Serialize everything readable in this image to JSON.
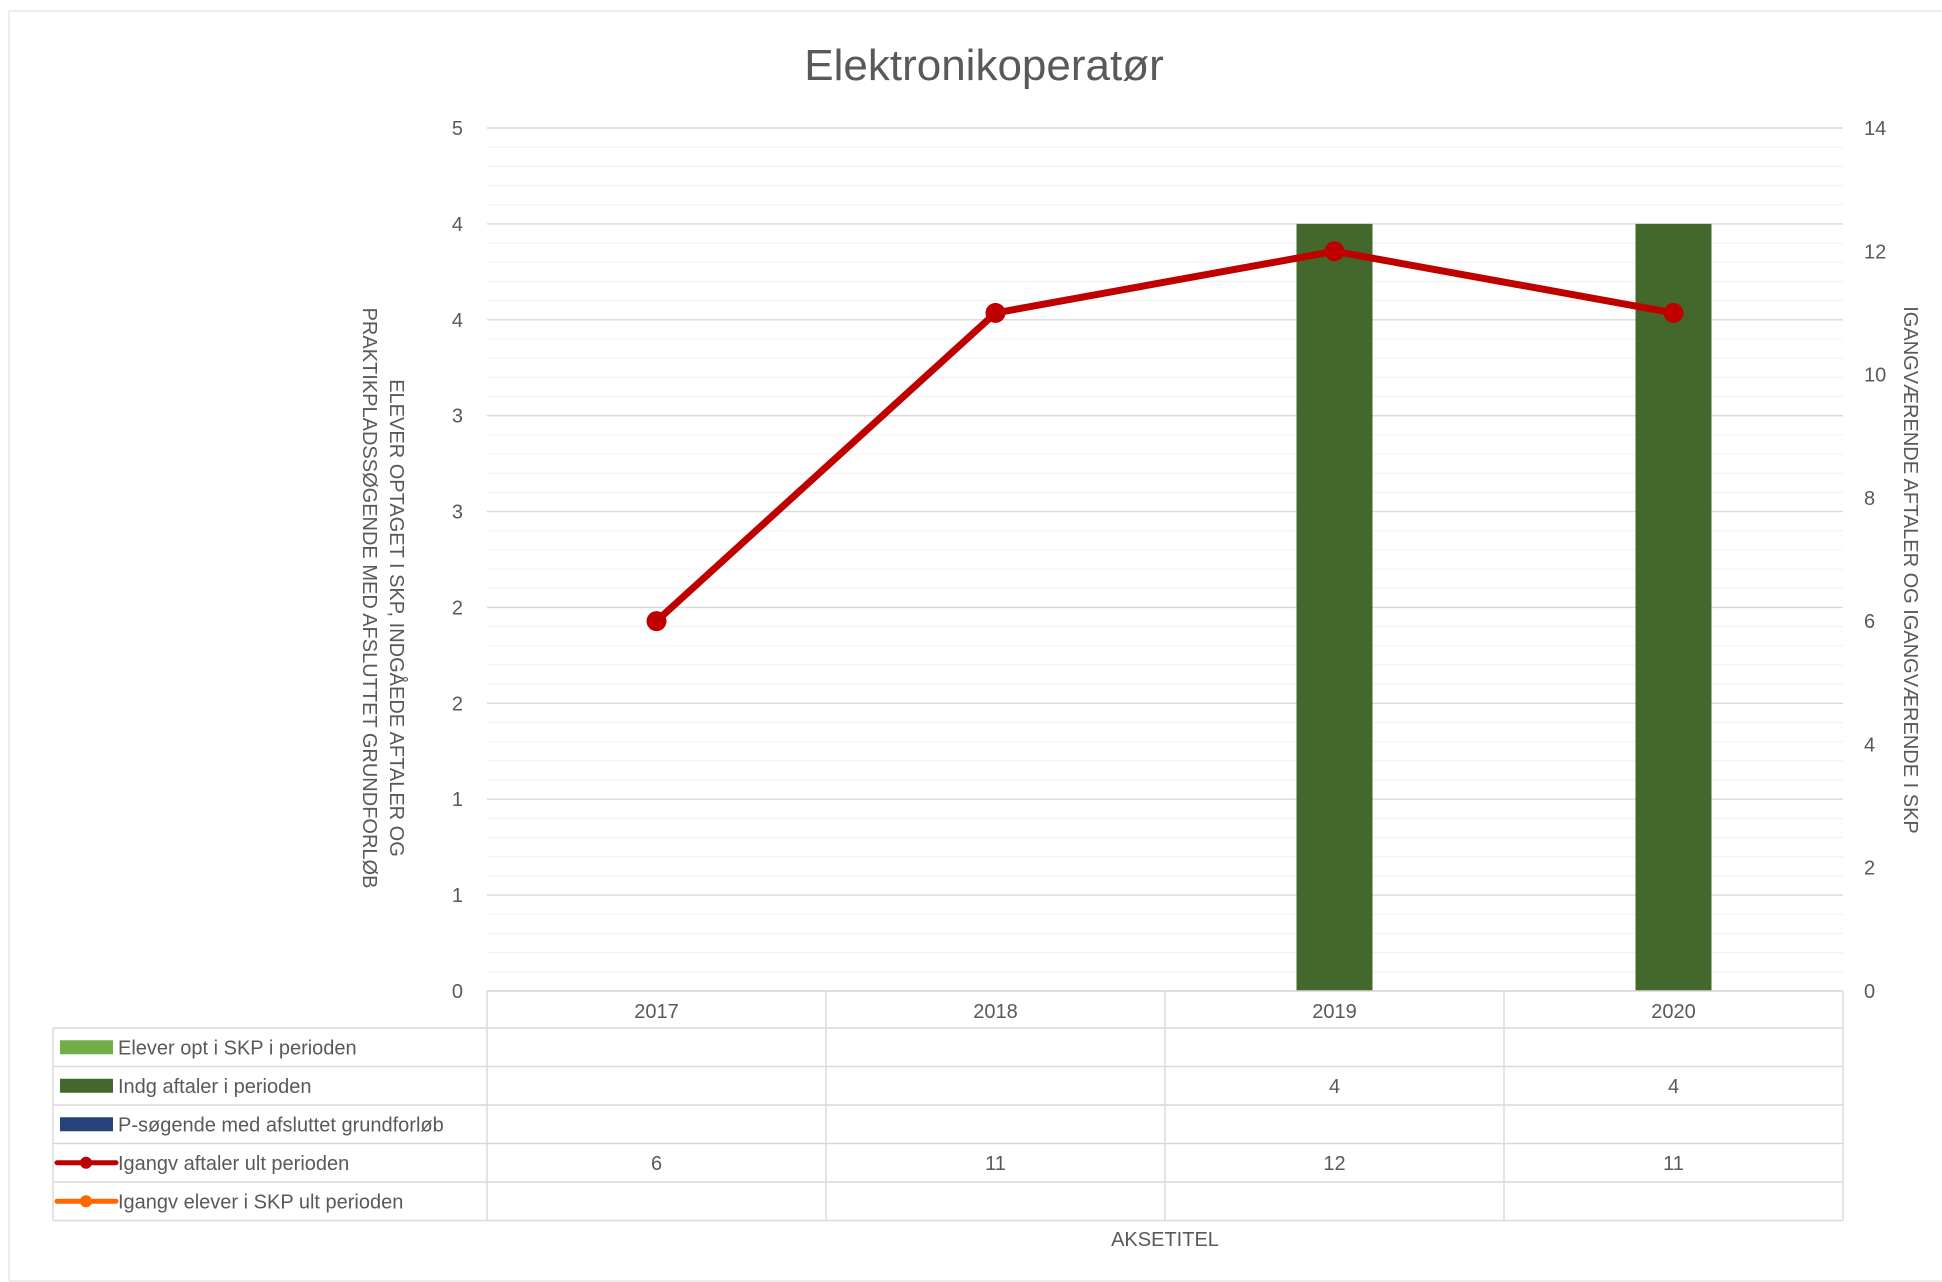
{
  "chart_data": {
    "type": "bar",
    "title": "Elektronikoperatør",
    "categories": [
      "2017",
      "2018",
      "2019",
      "2020"
    ],
    "y_left_label": "ELEVER OPTAGET I SKP, INDGÅEDE AFTALER OG PRAKTIKPLADSSØGENDE MED AFSLUTTET GRUNDFORLØB",
    "y_left_ticks": [
      "0",
      "1",
      "1",
      "2",
      "2",
      "3",
      "3",
      "4",
      "4",
      "5"
    ],
    "y_left_range": [
      0,
      4.5
    ],
    "y_right_label": "IGANGVÆRENDE AFTALER OG IGANGVÆRENDE I SKP",
    "y_right_ticks": [
      "0",
      "2",
      "4",
      "6",
      "8",
      "10",
      "12",
      "14"
    ],
    "y_right_range": [
      0,
      14
    ],
    "x_label": "AKSETITEL",
    "grid": true,
    "legend_position": "data-table",
    "series": [
      {
        "name": "Elever opt i SKP i perioden",
        "kind": "bar",
        "axis": "left",
        "color": "#70ad47",
        "values": [
          null,
          null,
          null,
          null
        ]
      },
      {
        "name": "Indg aftaler i perioden",
        "kind": "bar",
        "axis": "left",
        "color": "#43682b",
        "values": [
          null,
          null,
          4,
          4
        ]
      },
      {
        "name": "P-søgende med afsluttet grundforløb",
        "kind": "bar",
        "axis": "left",
        "color": "#264478",
        "values": [
          null,
          null,
          null,
          null
        ]
      },
      {
        "name": "Igangv aftaler ult perioden",
        "kind": "line",
        "axis": "right",
        "color": "#c00000",
        "values": [
          6,
          11,
          12,
          11
        ]
      },
      {
        "name": "Igangv elever i SKP ult perioden",
        "kind": "line",
        "axis": "right",
        "color": "#ff6600",
        "values": [
          null,
          null,
          null,
          null
        ]
      }
    ]
  }
}
